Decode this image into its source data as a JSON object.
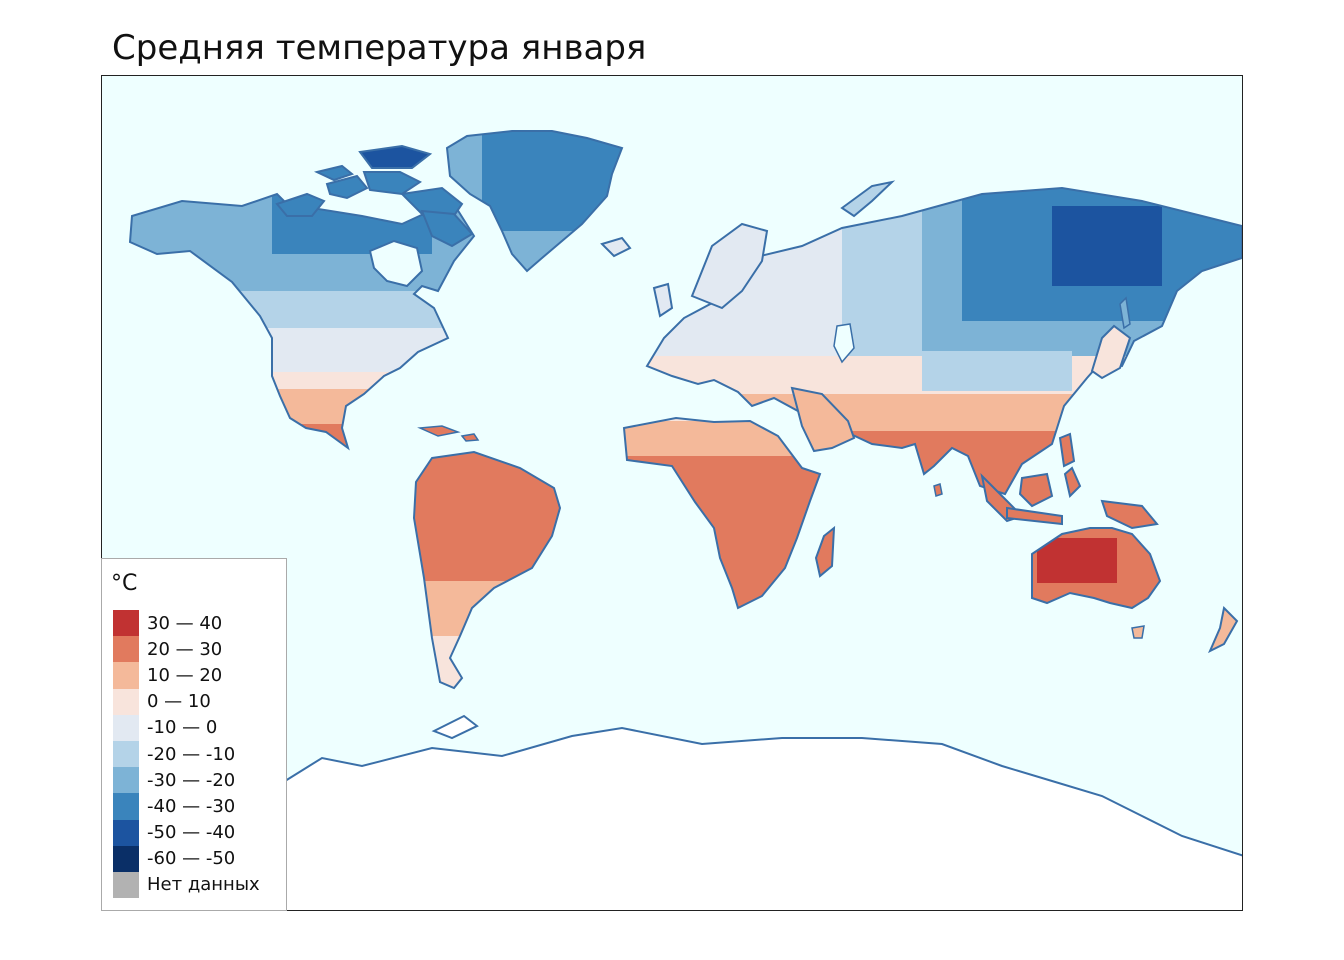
{
  "map": {
    "title": "Средняя температура января",
    "colors": {
      "ocean": "#eeffff",
      "coastline": "#3a6fa8",
      "antarctica": "#ffffff"
    }
  },
  "legend": {
    "title": "°C",
    "items": [
      {
        "label": "30 — 40",
        "color": "#c13232"
      },
      {
        "label": "20 — 30",
        "color": "#e17a5e"
      },
      {
        "label": "10 — 20",
        "color": "#f4b99a"
      },
      {
        "label": "0 — 10",
        "color": "#f8e4dc"
      },
      {
        "label": "-10 — 0",
        "color": "#e2e9f2"
      },
      {
        "label": "-20 — -10",
        "color": "#b4d3e8"
      },
      {
        "label": "-30 — -20",
        "color": "#7db3d6"
      },
      {
        "label": "-40 — -30",
        "color": "#3a84bc"
      },
      {
        "label": "-50 — -40",
        "color": "#1c54a0"
      },
      {
        "label": "-60 — -50",
        "color": "#0a2f67"
      },
      {
        "label": "Нет данных",
        "color": "#b2b2b2"
      }
    ]
  }
}
